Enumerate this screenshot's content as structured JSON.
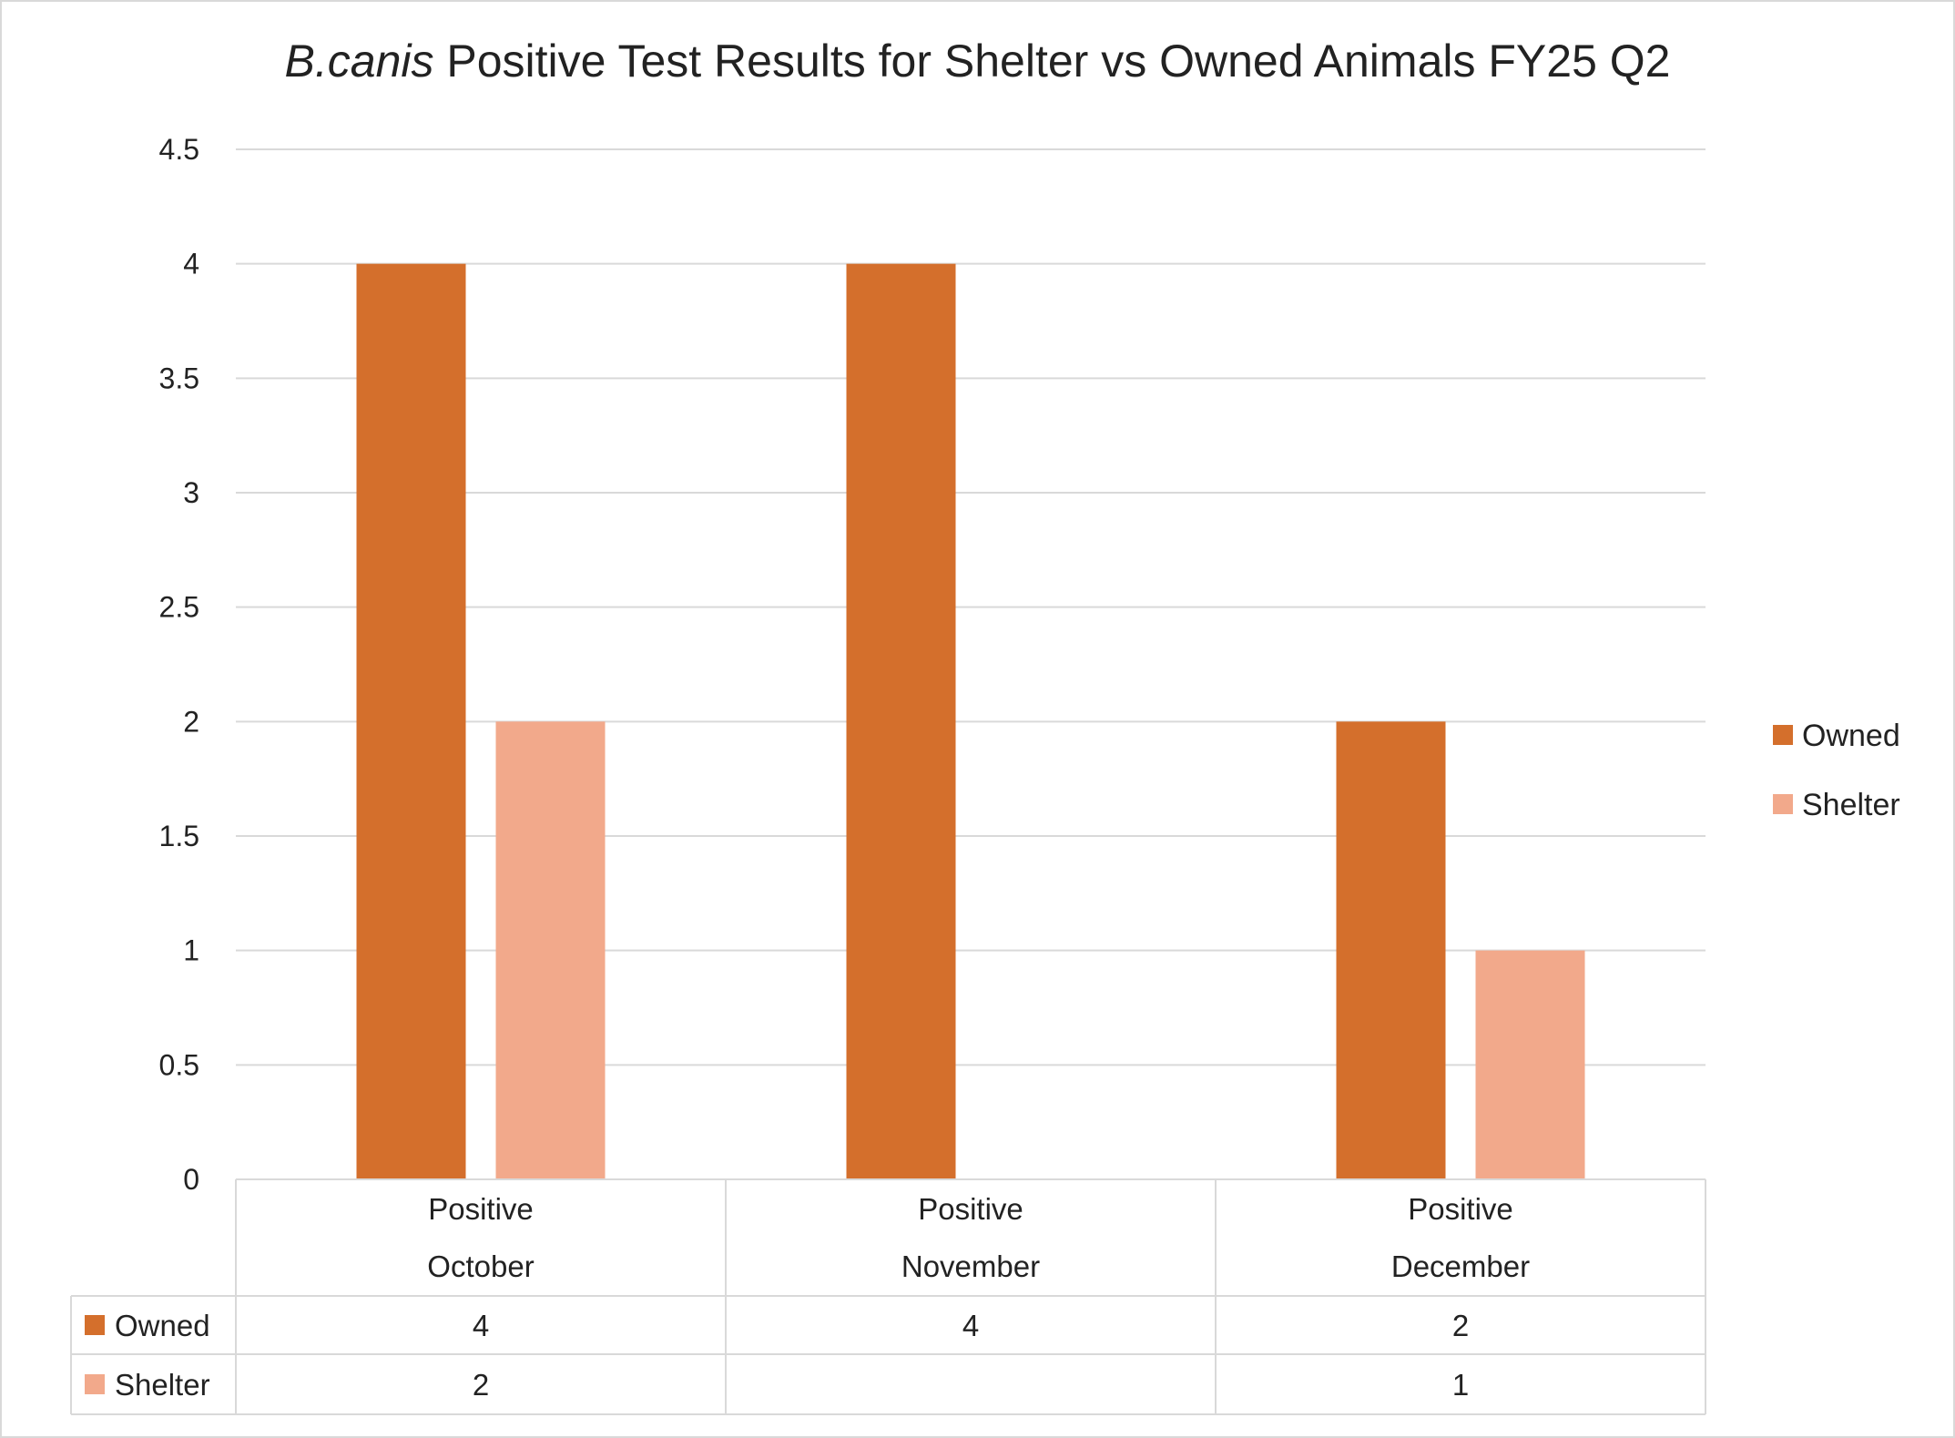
{
  "chart_data": {
    "type": "bar",
    "title_italic": "B.canis",
    "title_rest": " Positive Test Results for Shelter vs Owned Animals FY25 Q2",
    "categories": [
      [
        "Positive",
        "October"
      ],
      [
        "Positive",
        "November"
      ],
      [
        "Positive",
        "December"
      ]
    ],
    "series": [
      {
        "name": "Owned",
        "color": "#D46F2C",
        "values": [
          4,
          4,
          2
        ]
      },
      {
        "name": "Shelter",
        "color": "#F2A98B",
        "values": [
          2,
          null,
          1
        ]
      }
    ],
    "ylim": [
      0,
      4.5
    ],
    "yticks": [
      "0",
      "0.5",
      "1",
      "1.5",
      "2",
      "2.5",
      "3",
      "3.5",
      "4",
      "4.5"
    ],
    "grid": true,
    "legend": "right",
    "data_table": true
  }
}
